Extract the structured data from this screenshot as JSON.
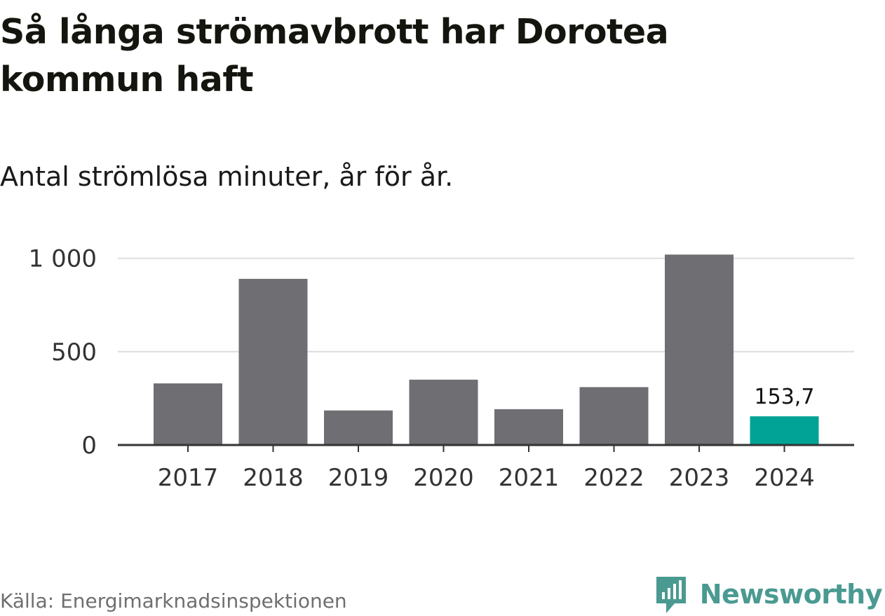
{
  "header": {
    "title": "Så långa strömavbrott har Dorotea kommun haft",
    "subtitle": "Antal strömlösa minuter, år för år."
  },
  "footer": {
    "source": "Källa: Energimarknadsinspektionen",
    "brand": "Newsworthy",
    "brand_icon": "newsworthy-logo-icon"
  },
  "colors": {
    "bar": "#6f6e73",
    "highlight": "#00a396",
    "grid": "#dcdcdc",
    "axis": "#333333",
    "brand": "#4a9a92"
  },
  "chart_data": {
    "type": "bar",
    "title": "Så långa strömavbrott har Dorotea kommun haft",
    "subtitle": "Antal strömlösa minuter, år för år.",
    "categories": [
      "2017",
      "2018",
      "2019",
      "2020",
      "2021",
      "2022",
      "2023",
      "2024"
    ],
    "values": [
      330,
      890,
      185,
      350,
      192,
      310,
      1020,
      153.7
    ],
    "highlight_index": 7,
    "data_labels": {
      "7": "153,7"
    },
    "yticks": [
      0,
      500,
      1000
    ],
    "ytick_labels": [
      "0",
      "500",
      "1 000"
    ],
    "ylim": [
      0,
      1020
    ],
    "grid": true,
    "legend": "none"
  }
}
